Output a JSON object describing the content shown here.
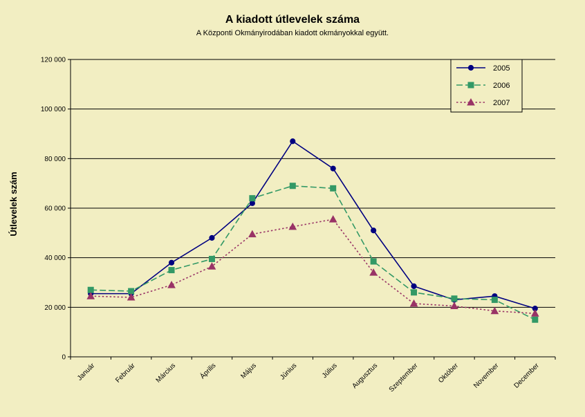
{
  "chart_data": {
    "type": "line",
    "title": "A  kiadott útlevelek száma",
    "subtitle": "A Központi Okmányirodában kiadott okmányokkal együtt.",
    "xlabel": "",
    "ylabel": "Útlevelek szám",
    "ylim": [
      0,
      120000
    ],
    "yticks": [
      0,
      20000,
      40000,
      60000,
      80000,
      100000,
      120000
    ],
    "ytick_labels": [
      "0",
      "20 000",
      "40 000",
      "60 000",
      "80 000",
      "100 000",
      "120 000"
    ],
    "grid": true,
    "legend": "top-right",
    "categories": [
      "Január",
      "Február",
      "Március",
      "Április",
      "Május",
      "Június",
      "Július",
      "Augusztus",
      "Szeptember",
      "Október",
      "November",
      "December"
    ],
    "series": [
      {
        "name": "2005",
        "color": "#000080",
        "marker": "circle",
        "dash": "solid",
        "values": [
          25500,
          25500,
          38000,
          48000,
          62000,
          87000,
          76000,
          51000,
          28500,
          23000,
          24500,
          19500
        ]
      },
      {
        "name": "2006",
        "color": "#339966",
        "marker": "square",
        "dash": "dashed",
        "values": [
          27000,
          26500,
          35000,
          39500,
          64000,
          69000,
          68000,
          38500,
          26000,
          23500,
          23000,
          15000
        ]
      },
      {
        "name": "2007",
        "color": "#993366",
        "marker": "triangle",
        "dash": "dotted",
        "values": [
          24500,
          24000,
          29000,
          36500,
          49500,
          52500,
          55500,
          34000,
          21500,
          20500,
          18500,
          17500
        ]
      }
    ]
  }
}
